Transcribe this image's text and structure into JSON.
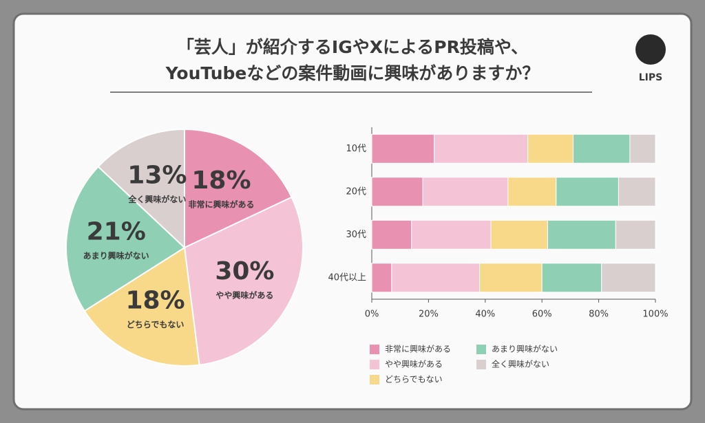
{
  "header": {
    "title_lines": [
      "「芸人」が紹介するIGやXによるPR投稿や、",
      "YouTubeなどの案件動画に興味がありますか？"
    ],
    "logo": "LIPS"
  },
  "chart_data": [
    {
      "type": "pie",
      "categories": [
        "非常に興味がある",
        "やや興味がある",
        "どちらでもない",
        "あまり興味がない",
        "全く興味がない"
      ],
      "values": [
        18,
        30,
        18,
        21,
        13
      ],
      "value_labels": [
        "18%",
        "30%",
        "18%",
        "21%",
        "13%"
      ],
      "colors": [
        "#e991b0",
        "#f4c3d6",
        "#f8d98a",
        "#8fd0b5",
        "#d9cfcf"
      ]
    },
    {
      "type": "stacked-bar-horizontal",
      "categories": [
        "10代",
        "20代",
        "30代",
        "40代以上"
      ],
      "series": [
        {
          "name": "非常に興味がある",
          "color": "#e991b0",
          "values": [
            22,
            18,
            14,
            7
          ]
        },
        {
          "name": "やや興味がある",
          "color": "#f4c3d6",
          "values": [
            33,
            30,
            28,
            31
          ]
        },
        {
          "name": "どちらでもない",
          "color": "#f8d98a",
          "values": [
            16,
            17,
            20,
            22
          ]
        },
        {
          "name": "あまり興味がない",
          "color": "#8fd0b5",
          "values": [
            20,
            22,
            24,
            21
          ]
        },
        {
          "name": "全く興味がない",
          "color": "#d9cfcf",
          "values": [
            9,
            13,
            14,
            19
          ]
        }
      ],
      "xlim": [
        0,
        100
      ],
      "xticks": [
        {
          "value": 0,
          "label": "0%"
        },
        {
          "value": 20,
          "label": "20%"
        },
        {
          "value": 40,
          "label": "40%"
        },
        {
          "value": 60,
          "label": "60%"
        },
        {
          "value": 80,
          "label": "80%"
        },
        {
          "value": 100,
          "label": "100%"
        }
      ]
    }
  ]
}
